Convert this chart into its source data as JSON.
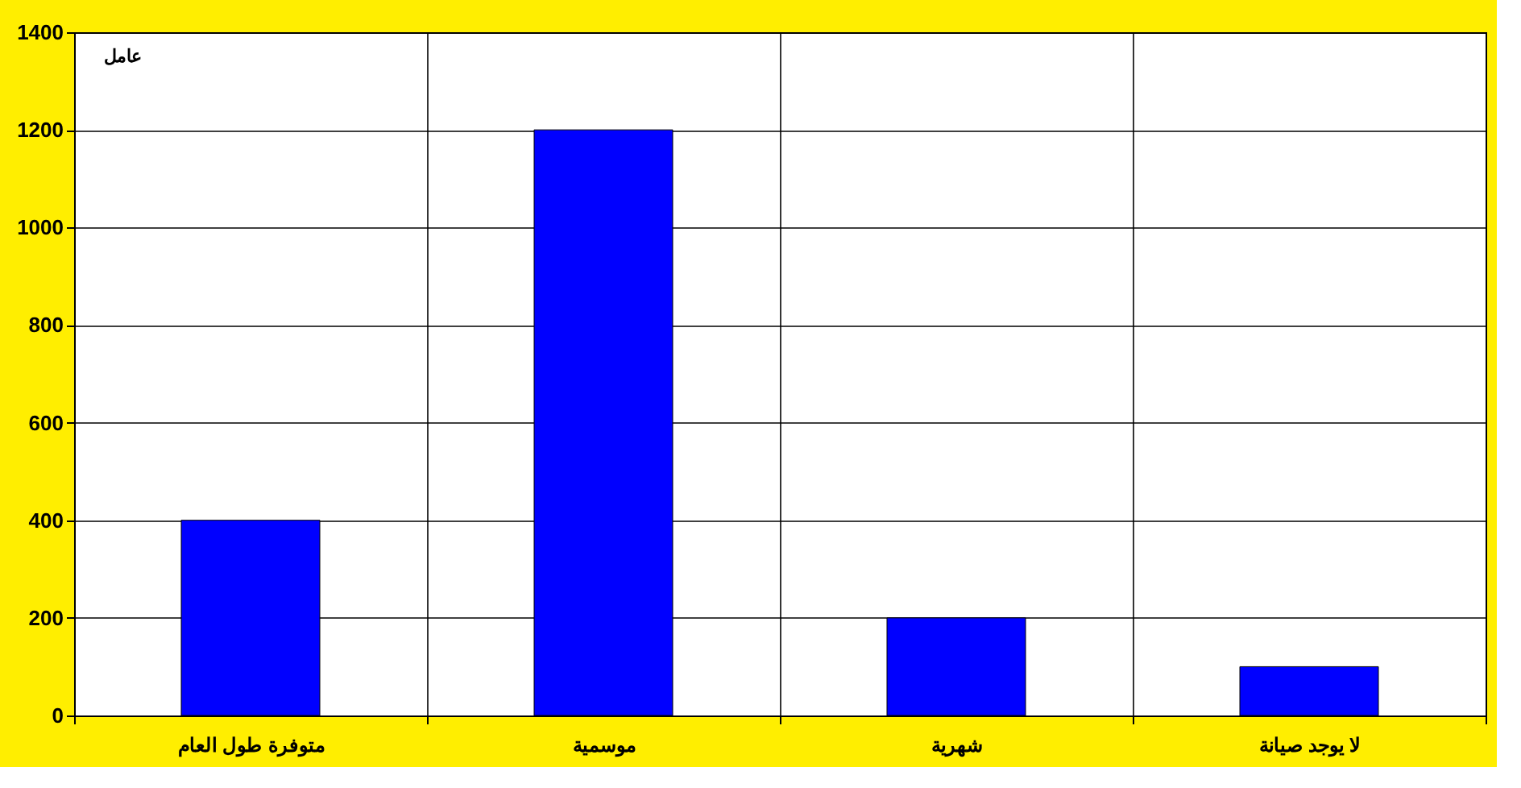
{
  "chart_data": {
    "type": "bar",
    "ylabel": "عامل",
    "categories": [
      "متوفرة طول العام",
      "موسمية",
      "شهرية",
      "لا يوجد صيانة"
    ],
    "values": [
      400,
      1200,
      200,
      100
    ],
    "color": "#0000ff",
    "ylim": [
      0,
      1400
    ],
    "yticks": [
      0,
      200,
      400,
      600,
      800,
      1000,
      1200,
      1400
    ],
    "grid": true
  }
}
